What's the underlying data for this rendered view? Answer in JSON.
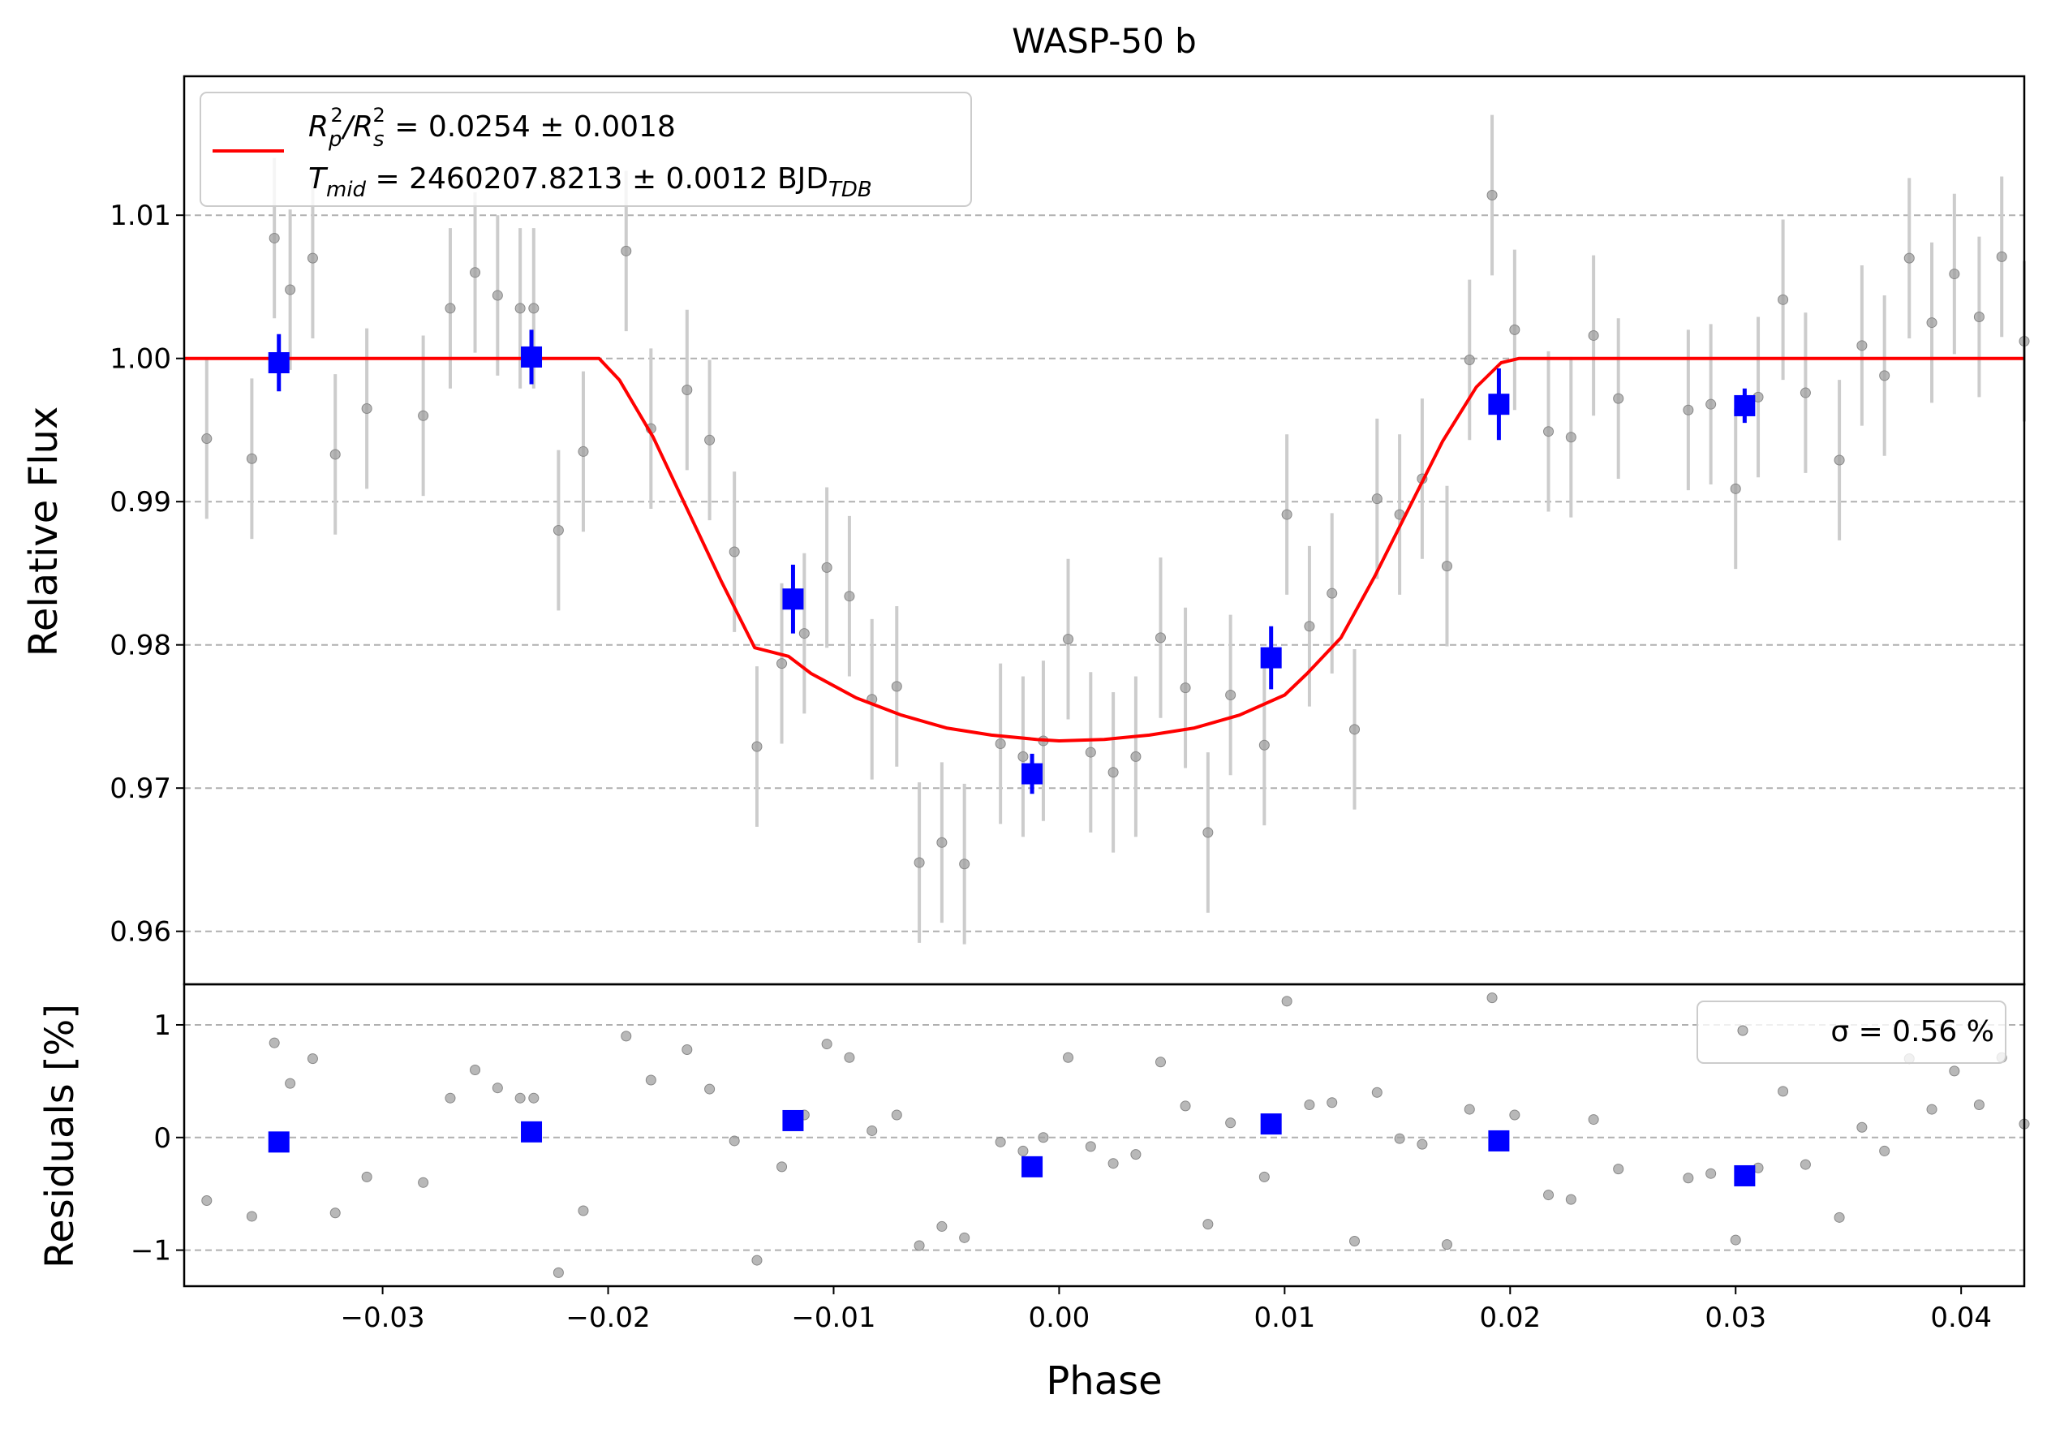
{
  "chart_data": {
    "type": "scatter",
    "title": "WASP-50 b",
    "xlabel": "Phase",
    "ylabel_top": "Relative Flux",
    "ylabel_bottom": "Residuals [%]",
    "xlim": [
      -0.0388,
      0.0428
    ],
    "ylim_top": [
      0.9563,
      1.0197
    ],
    "ylim_bottom": [
      -1.32,
      1.36
    ],
    "x_ticks": [
      -0.03,
      -0.02,
      -0.01,
      0.0,
      0.01,
      0.02,
      0.03,
      0.04
    ],
    "x_tick_labels": [
      "−0.03",
      "−0.02",
      "−0.01",
      "0.00",
      "0.01",
      "0.02",
      "0.03",
      "0.04"
    ],
    "y_ticks_top": [
      0.96,
      0.97,
      0.98,
      0.99,
      1.0,
      1.01
    ],
    "y_tick_labels_top": [
      "0.96",
      "0.97",
      "0.98",
      "0.99",
      "1.00",
      "1.01"
    ],
    "y_ticks_bottom": [
      -1,
      0,
      1
    ],
    "y_tick_labels_bottom": [
      "−1",
      "0",
      "1"
    ],
    "grid": "horizontal dashed",
    "legend_top": {
      "placement": "top-left",
      "line1": {
        "prefix": "R",
        "sub1": "p",
        "sup1": "2",
        "mid": "/R",
        "sub2": "s",
        "sup2": "2",
        "suffix": " = 0.0254 ± 0.0018"
      },
      "line2": {
        "prefix": "T",
        "sub1": "mid",
        "mid": " = 2460207.8213 ± 0.0012 BJD",
        "sub2": "TDB"
      }
    },
    "legend_bottom": {
      "placement": "top-right",
      "text": "σ = 0.56 %"
    },
    "colors": {
      "model": "#ff0000",
      "binned": "#0000ff",
      "raw": "#a0a0a0",
      "raw_err": "#cccccc",
      "grid": "#b0b0b0"
    },
    "model": {
      "name": "model",
      "baseline": 1.0,
      "points": [
        [
          -0.0388,
          1.0
        ],
        [
          -0.0204,
          1.0
        ],
        [
          -0.0195,
          0.9985
        ],
        [
          -0.018,
          0.9945
        ],
        [
          -0.0165,
          0.9895
        ],
        [
          -0.015,
          0.9845
        ],
        [
          -0.0135,
          0.9798
        ],
        [
          -0.012,
          0.9792
        ],
        [
          -0.011,
          0.978
        ],
        [
          -0.009,
          0.9763
        ],
        [
          -0.007,
          0.9751
        ],
        [
          -0.005,
          0.9742
        ],
        [
          -0.003,
          0.9737
        ],
        [
          -0.001,
          0.9734
        ],
        [
          0.0,
          0.9733
        ],
        [
          0.002,
          0.9734
        ],
        [
          0.004,
          0.9737
        ],
        [
          0.006,
          0.9742
        ],
        [
          0.008,
          0.9751
        ],
        [
          0.01,
          0.9765
        ],
        [
          0.011,
          0.978
        ],
        [
          0.0125,
          0.9805
        ],
        [
          0.014,
          0.9848
        ],
        [
          0.0155,
          0.9895
        ],
        [
          0.017,
          0.9942
        ],
        [
          0.0185,
          0.998
        ],
        [
          0.0196,
          0.9997
        ],
        [
          0.0204,
          1.0
        ],
        [
          0.0428,
          1.0
        ]
      ]
    },
    "raw": {
      "x": [
        -0.0378,
        -0.0358,
        -0.0348,
        -0.0341,
        -0.0331,
        -0.0321,
        -0.0307,
        -0.0282,
        -0.027,
        -0.0259,
        -0.0249,
        -0.0239,
        -0.0233,
        -0.0222,
        -0.0211,
        -0.0192,
        -0.0181,
        -0.0165,
        -0.0155,
        -0.0144,
        -0.0134,
        -0.0123,
        -0.0113,
        -0.0103,
        -0.0093,
        -0.0083,
        -0.0072,
        -0.0062,
        -0.0052,
        -0.0042,
        -0.0026,
        -0.0016,
        -0.0007,
        0.0004,
        0.0014,
        0.0024,
        0.0034,
        0.0045,
        0.0056,
        0.0066,
        0.0076,
        0.0091,
        0.0101,
        0.0111,
        0.0121,
        0.0131,
        0.0141,
        0.0151,
        0.0161,
        0.0172,
        0.0182,
        0.0192,
        0.0202,
        0.0217,
        0.0227,
        0.0237,
        0.0248,
        0.0279,
        0.0289,
        0.03,
        0.031,
        0.0321,
        0.0331,
        0.0346,
        0.0356,
        0.0366,
        0.0377,
        0.0387,
        0.0397,
        0.0408,
        0.0418,
        0.0428
      ],
      "y": [
        0.9944,
        0.993,
        1.0084,
        1.0048,
        1.007,
        0.9933,
        0.9965,
        0.996,
        1.0035,
        1.006,
        1.0044,
        1.0035,
        1.0035,
        0.988,
        0.9935,
        1.0075,
        0.9951,
        0.9978,
        0.9943,
        0.9865,
        0.9729,
        0.9787,
        0.9808,
        0.9854,
        0.9834,
        0.9762,
        0.9771,
        0.9648,
        0.9662,
        0.9647,
        0.9731,
        0.9722,
        0.9733,
        0.9804,
        0.9725,
        0.9711,
        0.9722,
        0.9805,
        0.977,
        0.9669,
        0.9765,
        0.973,
        0.9891,
        0.9813,
        0.9836,
        0.9741,
        0.9902,
        0.9891,
        0.9916,
        0.9855,
        0.9999,
        1.0114,
        1.002,
        0.9949,
        0.9945,
        1.0016,
        0.9972,
        0.9964,
        0.9968,
        0.9909,
        0.9973,
        1.0041,
        0.9976,
        0.9929,
        1.0009,
        0.9988,
        1.007,
        1.0025,
        1.0059,
        1.0029,
        1.0071,
        1.0012
      ],
      "yerr": [
        0.0056,
        0.0056,
        0.0056,
        0.0056,
        0.0056,
        0.0056,
        0.0056,
        0.0056,
        0.0056,
        0.0056,
        0.0056,
        0.0056,
        0.0056,
        0.0056,
        0.0056,
        0.0056,
        0.0056,
        0.0056,
        0.0056,
        0.0056,
        0.0056,
        0.0056,
        0.0056,
        0.0056,
        0.0056,
        0.0056,
        0.0056,
        0.0056,
        0.0056,
        0.0056,
        0.0056,
        0.0056,
        0.0056,
        0.0056,
        0.0056,
        0.0056,
        0.0056,
        0.0056,
        0.0056,
        0.0056,
        0.0056,
        0.0056,
        0.0056,
        0.0056,
        0.0056,
        0.0056,
        0.0056,
        0.0056,
        0.0056,
        0.0056,
        0.0056,
        0.0056,
        0.0056,
        0.0056,
        0.0056,
        0.0056,
        0.0056,
        0.0056,
        0.0056,
        0.0056,
        0.0056,
        0.0056,
        0.0056,
        0.0056,
        0.0056,
        0.0056,
        0.0056,
        0.0056,
        0.0056,
        0.0056,
        0.0056,
        0.0056
      ],
      "residuals": [
        -0.56,
        -0.7,
        0.84,
        0.48,
        0.7,
        -0.67,
        -0.35,
        -0.4,
        0.35,
        0.6,
        0.44,
        0.35,
        0.35,
        -1.2,
        -0.65,
        0.9,
        0.51,
        0.78,
        0.43,
        -0.03,
        -1.09,
        -0.26,
        0.2,
        0.83,
        0.71,
        0.06,
        0.2,
        -0.96,
        -0.79,
        -0.89,
        -0.04,
        -0.12,
        0.0,
        0.71,
        -0.08,
        -0.23,
        -0.15,
        0.67,
        0.28,
        -0.77,
        0.13,
        -0.35,
        1.21,
        0.29,
        0.31,
        -0.92,
        0.4,
        -0.01,
        -0.06,
        -0.95,
        0.25,
        1.24,
        0.2,
        -0.51,
        -0.55,
        0.16,
        -0.28,
        -0.36,
        -0.32,
        -0.91,
        -0.27,
        0.41,
        -0.24,
        -0.71,
        0.09,
        -0.12,
        0.7,
        0.25,
        0.59,
        0.29,
        0.71,
        0.12
      ]
    },
    "binned": {
      "x": [
        -0.0346,
        -0.0234,
        -0.0118,
        -0.0012,
        0.0094,
        0.0195,
        0.0304
      ],
      "y": [
        0.9997,
        1.0001,
        0.9832,
        0.971,
        0.9791,
        0.9968,
        0.9967
      ],
      "yerr": [
        0.002,
        0.0019,
        0.0024,
        0.0014,
        0.0022,
        0.0025,
        0.0012
      ],
      "residuals": [
        -0.04,
        0.05,
        0.15,
        -0.26,
        0.12,
        -0.03,
        -0.34
      ]
    }
  }
}
